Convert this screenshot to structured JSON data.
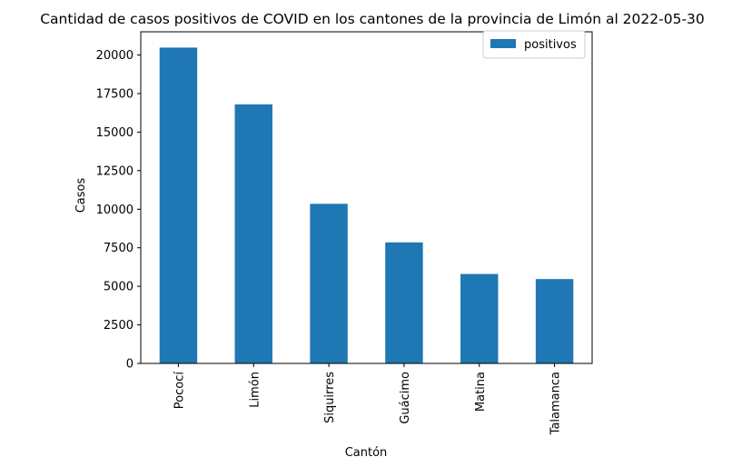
{
  "chart_data": {
    "type": "bar",
    "title": "Cantidad de casos positivos de COVID en los cantones de la provincia de Limón al 2022-05-30",
    "xlabel": "Cantón",
    "ylabel": "Casos",
    "categories": [
      "Pococí",
      "Limón",
      "Siquirres",
      "Guácimo",
      "Matina",
      "Talamanca"
    ],
    "series": [
      {
        "name": "positivos",
        "values": [
          20480,
          16800,
          10350,
          7850,
          5800,
          5470
        ],
        "color": "#1f77b4"
      }
    ],
    "ylim": [
      0,
      21504
    ],
    "yticks": [
      0,
      2500,
      5000,
      7500,
      10000,
      12500,
      15000,
      17500,
      20000
    ],
    "ytick_labels": [
      "0",
      "2500",
      "5000",
      "7500",
      "10000",
      "12500",
      "15000",
      "17500",
      "20000"
    ],
    "grid": false,
    "legend_position": "top-right"
  }
}
